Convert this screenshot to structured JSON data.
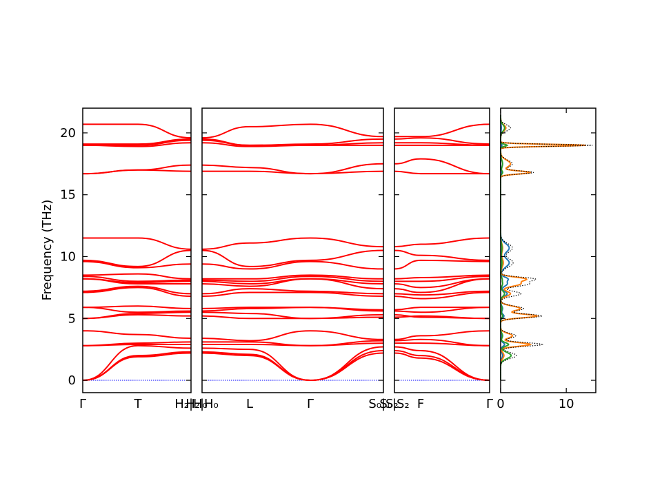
{
  "chart_data": {
    "type": "line",
    "ylabel": "Frequency (THz)",
    "ylim": [
      -1.0,
      22.0
    ],
    "yticks": [
      0,
      5,
      10,
      15,
      20
    ],
    "band_color": "#ff0000",
    "zero_line_color": "#0000ff",
    "panels": [
      {
        "segments": [
          {
            "labels": [
              "Γ",
              "T"
            ]
          },
          {
            "labels": [
              "T",
              "H₂|H₀"
            ]
          }
        ]
      },
      {
        "segments": [
          {
            "labels": [
              "H₂|H₀",
              "L"
            ]
          },
          {
            "labels": [
              "L",
              "Γ"
            ]
          },
          {
            "labels": [
              "Γ",
              "S₀|S₂"
            ]
          }
        ]
      },
      {
        "segments": [
          {
            "labels": [
              "S₀|S₂",
              "F"
            ]
          },
          {
            "labels": [
              "F",
              "Γ"
            ]
          }
        ]
      }
    ],
    "bands": [
      {
        "name": "b1",
        "gamma": 0.0,
        "t": 1.9,
        "h": 2.2,
        "l": 2.0,
        "s": 2.2,
        "f": 1.8
      },
      {
        "name": "b2",
        "gamma": 0.0,
        "t": 2.0,
        "h": 2.3,
        "l": 2.1,
        "s": 2.4,
        "f": 2.0
      },
      {
        "name": "b3",
        "gamma": 0.0,
        "t": 2.8,
        "h": 2.6,
        "l": 2.5,
        "s": 2.7,
        "f": 2.4
      },
      {
        "name": "b4",
        "gamma": 2.8,
        "t": 2.9,
        "h": 2.9,
        "l": 2.9,
        "s": 3.0,
        "f": 3.0
      },
      {
        "name": "b5",
        "gamma": 2.8,
        "t": 3.0,
        "h": 3.1,
        "l": 3.1,
        "s": 3.2,
        "f": 3.3
      },
      {
        "name": "b6",
        "gamma": 4.0,
        "t": 3.7,
        "h": 3.4,
        "l": 3.2,
        "s": 3.3,
        "f": 3.6
      },
      {
        "name": "b7",
        "gamma": 5.0,
        "t": 5.3,
        "h": 5.2,
        "l": 5.0,
        "s": 5.1,
        "f": 5.2
      },
      {
        "name": "b8",
        "gamma": 5.0,
        "t": 5.4,
        "h": 5.5,
        "l": 5.4,
        "s": 5.3,
        "f": 5.1
      },
      {
        "name": "b9",
        "gamma": 5.9,
        "t": 5.5,
        "h": 5.6,
        "l": 5.8,
        "s": 5.6,
        "f": 5.5
      },
      {
        "name": "b10",
        "gamma": 5.9,
        "t": 6.0,
        "h": 5.8,
        "l": 5.9,
        "s": 5.7,
        "f": 5.9
      },
      {
        "name": "b11",
        "gamma": 7.1,
        "t": 7.5,
        "h": 6.8,
        "l": 7.1,
        "s": 6.8,
        "f": 6.6
      },
      {
        "name": "b12",
        "gamma": 7.2,
        "t": 7.6,
        "h": 7.0,
        "l": 7.4,
        "s": 7.0,
        "f": 6.9
      },
      {
        "name": "b13",
        "gamma": 8.2,
        "t": 7.8,
        "h": 7.8,
        "l": 7.6,
        "s": 7.4,
        "f": 7.1
      },
      {
        "name": "b14",
        "gamma": 8.2,
        "t": 7.9,
        "h": 8.0,
        "l": 7.8,
        "s": 7.8,
        "f": 7.5
      },
      {
        "name": "b15",
        "gamma": 8.4,
        "t": 8.0,
        "h": 8.1,
        "l": 8.0,
        "s": 8.0,
        "f": 8.0
      },
      {
        "name": "b16",
        "gamma": 8.5,
        "t": 8.6,
        "h": 8.2,
        "l": 8.2,
        "s": 8.2,
        "f": 8.3
      },
      {
        "name": "b17",
        "gamma": 9.6,
        "t": 9.1,
        "h": 9.4,
        "l": 9.0,
        "s": 9.0,
        "f": 9.7
      },
      {
        "name": "b18",
        "gamma": 9.7,
        "t": 9.2,
        "h": 10.5,
        "l": 9.2,
        "s": 10.5,
        "f": 10.1
      },
      {
        "name": "b19",
        "gamma": 11.5,
        "t": 11.5,
        "h": 10.6,
        "l": 11.1,
        "s": 10.8,
        "f": 11.0
      },
      {
        "name": "b20",
        "gamma": 16.7,
        "t": 17.0,
        "h": 16.9,
        "l": 16.9,
        "s": 16.9,
        "f": 16.7
      },
      {
        "name": "b21",
        "gamma": 16.7,
        "t": 17.0,
        "h": 17.4,
        "l": 17.2,
        "s": 17.5,
        "f": 17.9
      },
      {
        "name": "b22",
        "gamma": 19.0,
        "t": 18.9,
        "h": 19.2,
        "l": 18.9,
        "s": 19.0,
        "f": 19.0
      },
      {
        "name": "b23",
        "gamma": 19.0,
        "t": 19.0,
        "h": 19.4,
        "l": 19.0,
        "s": 19.2,
        "f": 19.2
      },
      {
        "name": "b24",
        "gamma": 19.1,
        "t": 19.1,
        "h": 19.5,
        "l": 19.0,
        "s": 19.5,
        "f": 19.6
      },
      {
        "name": "b25",
        "gamma": 20.7,
        "t": 20.7,
        "h": 19.6,
        "l": 20.5,
        "s": 19.7,
        "f": 19.7
      }
    ],
    "dos": {
      "xticks": [
        0,
        10
      ],
      "xlim": [
        0,
        14.5
      ],
      "series": [
        {
          "color": "#1f77b4",
          "style": "solid"
        },
        {
          "color": "#ff7f0e",
          "style": "solid"
        },
        {
          "color": "#2ca02c",
          "style": "solid"
        },
        {
          "color": "#000000",
          "style": "dotted"
        }
      ],
      "peaks": [
        {
          "f": 2.0,
          "w": 0.25,
          "a": [
            0.3,
            0.5,
            1.6,
            2.4
          ]
        },
        {
          "f": 2.9,
          "w": 0.15,
          "a": [
            0.6,
            4.5,
            1.2,
            6.3
          ]
        },
        {
          "f": 3.6,
          "w": 0.2,
          "a": [
            0.2,
            1.8,
            0.3,
            2.3
          ]
        },
        {
          "f": 5.2,
          "w": 0.15,
          "a": [
            0.5,
            5.5,
            0.3,
            6.3
          ]
        },
        {
          "f": 5.8,
          "w": 0.2,
          "a": [
            0.3,
            3.0,
            0.2,
            3.5
          ]
        },
        {
          "f": 7.0,
          "w": 0.2,
          "a": [
            1.0,
            1.5,
            0.6,
            3.1
          ]
        },
        {
          "f": 7.8,
          "w": 0.2,
          "a": [
            1.0,
            3.0,
            0.3,
            4.3
          ]
        },
        {
          "f": 8.2,
          "w": 0.15,
          "a": [
            1.0,
            3.5,
            0.2,
            4.7
          ]
        },
        {
          "f": 9.5,
          "w": 0.35,
          "a": [
            1.3,
            0.4,
            0.2,
            1.9
          ]
        },
        {
          "f": 10.7,
          "w": 0.35,
          "a": [
            1.3,
            0.3,
            0.2,
            1.8
          ]
        },
        {
          "f": 16.8,
          "w": 0.12,
          "a": [
            0.1,
            4.5,
            0.3,
            4.9
          ]
        },
        {
          "f": 17.5,
          "w": 0.3,
          "a": [
            0.0,
            1.5,
            0.3,
            1.8
          ]
        },
        {
          "f": 19.0,
          "w": 0.08,
          "a": [
            0.2,
            13.0,
            1.0,
            14.0
          ]
        },
        {
          "f": 20.4,
          "w": 0.25,
          "a": [
            0.1,
            0.8,
            0.6,
            1.5
          ]
        }
      ]
    }
  }
}
